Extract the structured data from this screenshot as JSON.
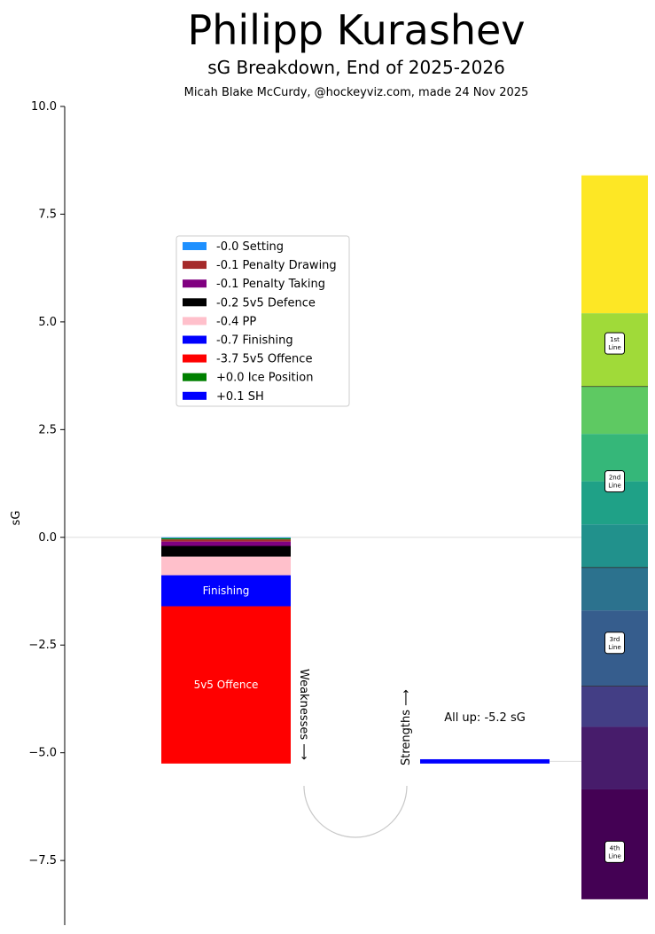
{
  "chart_data": {
    "type": "bar",
    "title": "Philipp Kurashev",
    "subtitle": "sG Breakdown, End of 2025-2026",
    "credit": "Micah Blake McCurdy, @hockeyviz.com, made 24 Nov 2025",
    "ylabel": "sG",
    "ylim": [
      -9.0,
      10.0
    ],
    "yticks": [
      {
        "value": 10.0,
        "label": "10.0"
      },
      {
        "value": 7.5,
        "label": "7.5"
      },
      {
        "value": 5.0,
        "label": "5.0"
      },
      {
        "value": 2.5,
        "label": "2.5"
      },
      {
        "value": 0.0,
        "label": "0.0"
      },
      {
        "value": -2.5,
        "label": "−2.5"
      },
      {
        "value": -5.0,
        "label": "−5.0"
      },
      {
        "value": -7.5,
        "label": "−7.5"
      }
    ],
    "weakness_segments": [
      {
        "name": "Setting",
        "legend": "-0.0 Setting",
        "start": 0.0,
        "end": -0.02,
        "color": "#1e90ff",
        "bar_label": ""
      },
      {
        "name": "Ice Position",
        "legend": "+0.0 Ice Position",
        "start": -0.02,
        "end": -0.05,
        "color": "#008000",
        "bar_label": ""
      },
      {
        "name": "Penalty Drawing",
        "legend": "-0.1 Penalty Drawing",
        "start": -0.05,
        "end": -0.1,
        "color": "#a52a2a",
        "bar_label": ""
      },
      {
        "name": "Penalty Taking",
        "legend": "-0.1 Penalty Taking",
        "start": -0.1,
        "end": -0.2,
        "color": "#800080",
        "bar_label": ""
      },
      {
        "name": "5v5 Defence",
        "legend": "-0.2 5v5 Defence",
        "start": -0.2,
        "end": -0.45,
        "color": "#000000",
        "bar_label": ""
      },
      {
        "name": "PP",
        "legend": "-0.4 PP",
        "start": -0.45,
        "end": -0.88,
        "color": "#ffc0cb",
        "bar_label": ""
      },
      {
        "name": "Finishing",
        "legend": "-0.7 Finishing",
        "start": -0.88,
        "end": -1.6,
        "color": "#0000ff",
        "bar_label": "Finishing"
      },
      {
        "name": "5v5 Offence",
        "legend": "-3.7 5v5 Offence",
        "start": -1.6,
        "end": -5.25,
        "color": "#ff0000",
        "bar_label": "5v5 Offence"
      }
    ],
    "legend_order": [
      {
        "label": "-0.0 Setting",
        "color": "#1e90ff"
      },
      {
        "label": "-0.1 Penalty Drawing",
        "color": "#a52a2a"
      },
      {
        "label": "-0.1 Penalty Taking",
        "color": "#800080"
      },
      {
        "label": "-0.2 5v5 Defence",
        "color": "#000000"
      },
      {
        "label": "-0.4 PP",
        "color": "#ffc0cb"
      },
      {
        "label": "-0.7 Finishing",
        "color": "#0000ff"
      },
      {
        "label": "-3.7 5v5 Offence",
        "color": "#ff0000"
      },
      {
        "label": "+0.0 Ice Position",
        "color": "#008000"
      },
      {
        "label": "+0.1 SH",
        "color": "#0000ff"
      }
    ],
    "strengths": [
      {
        "name": "SH",
        "legend": "+0.1 SH",
        "start": -5.25,
        "end": -5.15,
        "color": "#0000ff"
      }
    ],
    "weaknesses_label": "Weaknesses ⟶",
    "strengths_label": "Strengths ⟶",
    "all_up_label": "All up: -5.2 sG",
    "all_up_value": -5.2,
    "line_scale": [
      {
        "from": 5.2,
        "to": 8.4,
        "color": "#fde725"
      },
      {
        "from": 3.5,
        "to": 5.2,
        "color": "#a0da39"
      },
      {
        "from": 2.4,
        "to": 3.5,
        "color": "#5ec962"
      },
      {
        "from": 1.3,
        "to": 2.4,
        "color": "#35b779"
      },
      {
        "from": 0.3,
        "to": 1.3,
        "color": "#1fa187"
      },
      {
        "from": -0.7,
        "to": 0.3,
        "color": "#21918c"
      },
      {
        "from": -1.7,
        "to": -0.7,
        "color": "#2c728e"
      },
      {
        "from": -3.45,
        "to": -1.7,
        "color": "#365d8d"
      },
      {
        "from": -4.4,
        "to": -3.45,
        "color": "#433e85"
      },
      {
        "from": -5.85,
        "to": -4.4,
        "color": "#471c6b"
      },
      {
        "from": -8.4,
        "to": -5.85,
        "color": "#440154"
      }
    ],
    "line_dividers": [
      3.5,
      -0.7,
      -3.45
    ],
    "line_labels": [
      {
        "text1": "1st",
        "text2": "Line",
        "value": 4.5
      },
      {
        "text1": "2nd",
        "text2": "Line",
        "value": 1.3
      },
      {
        "text1": "3rd",
        "text2": "Line",
        "value": -2.45
      },
      {
        "text1": "4th",
        "text2": "Line",
        "value": -7.3
      }
    ]
  }
}
